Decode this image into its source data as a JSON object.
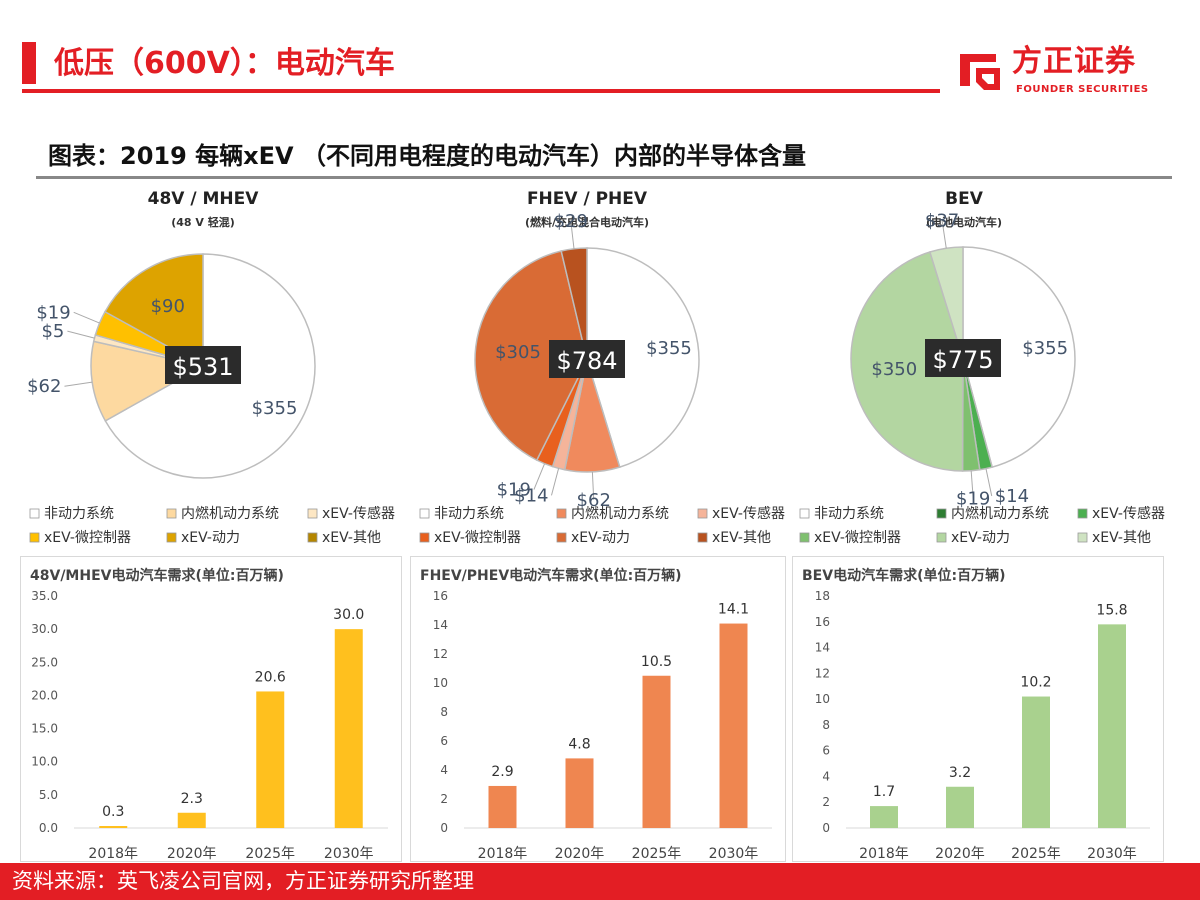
{
  "header": {
    "title": "低压（600V）：电动汽车",
    "logo_cn": "方正证券",
    "logo_en": "FOUNDER SECURITIES"
  },
  "figure": {
    "title": "图表：2019 每辆xEV （不同用电程度的电动汽车）内部的半导体含量"
  },
  "footer": {
    "source": "资料来源：英飞凌公司官网，方正证券研究所整理"
  },
  "legend_labels": [
    "非动力系统",
    "内燃机动力系统",
    "xEV-传感器",
    "xEV-微控制器",
    "xEV-动力",
    "xEV-其他"
  ],
  "chart_data": [
    {
      "type": "pie",
      "title": "48V / MHEV",
      "subtitle": "(48 V 轻混)",
      "total_label": "$531",
      "categories": [
        "非动力系统",
        "内燃机动力系统",
        "xEV-传感器",
        "xEV-微控制器",
        "xEV-动力",
        "xEV-其他"
      ],
      "values": [
        355,
        62,
        5,
        19,
        90,
        0
      ],
      "value_labels": [
        "$355",
        "$62",
        "$5",
        "$19",
        "$90",
        ""
      ],
      "colors": [
        "#ffffff",
        "#fdd9a0",
        "#fde7c4",
        "#ffc000",
        "#dda300",
        "#b58600"
      ]
    },
    {
      "type": "pie",
      "title": "FHEV / PHEV",
      "subtitle": "(燃料/充电混合电动汽车)",
      "total_label": "$784",
      "categories": [
        "非动力系统",
        "内燃机动力系统",
        "xEV-传感器",
        "xEV-微控制器",
        "xEV-动力",
        "xEV-其他"
      ],
      "values": [
        355,
        62,
        14,
        19,
        305,
        29
      ],
      "value_labels": [
        "$355",
        "$62",
        "$14",
        "$19",
        "$305",
        "$29"
      ],
      "colors": [
        "#ffffff",
        "#f08a5d",
        "#f5b49a",
        "#e8601e",
        "#d96b35",
        "#b8521f"
      ]
    },
    {
      "type": "pie",
      "title": "BEV",
      "subtitle": "(电池电动汽车)",
      "total_label": "$775",
      "categories": [
        "非动力系统",
        "内燃机动力系统",
        "xEV-传感器",
        "xEV-微控制器",
        "xEV-动力",
        "xEV-其他"
      ],
      "values": [
        355,
        0,
        14,
        19,
        350,
        37
      ],
      "value_labels": [
        "$355",
        "",
        "$14",
        "$19",
        "$350",
        "$37"
      ],
      "colors": [
        "#ffffff",
        "#2e7d32",
        "#4caf50",
        "#7fc06f",
        "#b3d6a1",
        "#cfe3c2"
      ]
    },
    {
      "type": "bar",
      "title": "48V/MHEV电动汽车需求(单位:百万辆)",
      "categories": [
        "2018年",
        "2020年",
        "2025年",
        "2030年"
      ],
      "values": [
        0.3,
        2.3,
        20.6,
        30.0
      ],
      "value_labels": [
        "0.3",
        "2.3",
        "20.6",
        "30.0"
      ],
      "ylim": [
        0,
        35
      ],
      "yticks": [
        "0.0",
        "5.0",
        "10.0",
        "15.0",
        "20.0",
        "25.0",
        "30.0",
        "35.0"
      ],
      "color": "#ffc01e"
    },
    {
      "type": "bar",
      "title": "FHEV/PHEV电动汽车需求(单位:百万辆)",
      "categories": [
        "2018年",
        "2020年",
        "2025年",
        "2030年"
      ],
      "values": [
        2.9,
        4.8,
        10.5,
        14.1
      ],
      "value_labels": [
        "2.9",
        "4.8",
        "10.5",
        "14.1"
      ],
      "ylim": [
        0,
        16
      ],
      "yticks": [
        "0",
        "2",
        "4",
        "6",
        "8",
        "10",
        "12",
        "14",
        "16"
      ],
      "color": "#ef8650"
    },
    {
      "type": "bar",
      "title": "BEV电动汽车需求(单位:百万辆)",
      "categories": [
        "2018年",
        "2020年",
        "2025年",
        "2030年"
      ],
      "values": [
        1.7,
        3.2,
        10.2,
        15.8
      ],
      "value_labels": [
        "1.7",
        "3.2",
        "10.2",
        "15.8"
      ],
      "ylim": [
        0,
        18
      ],
      "yticks": [
        "0",
        "2",
        "4",
        "6",
        "8",
        "10",
        "12",
        "14",
        "16",
        "18"
      ],
      "color": "#a9d18e"
    }
  ]
}
